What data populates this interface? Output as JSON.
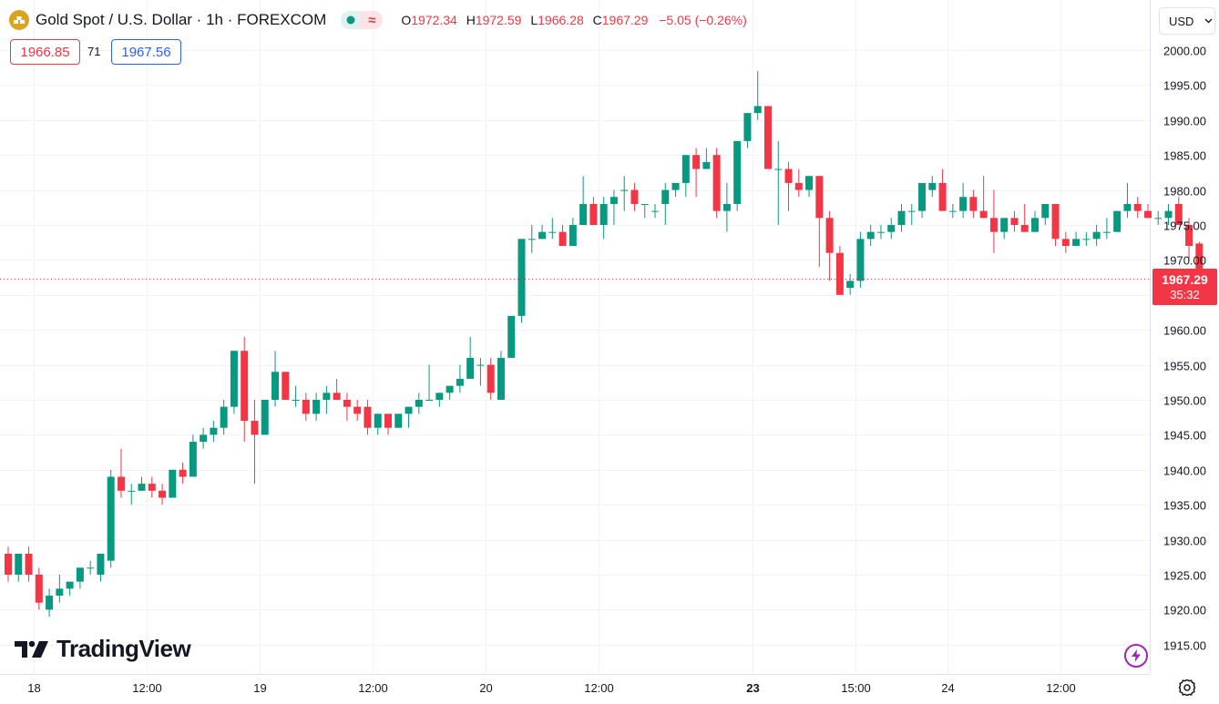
{
  "header": {
    "symbol": "Gold Spot / U.S. Dollar · 1h · FOREXCOM",
    "ohlc": {
      "o_key": "O",
      "o": "1972.34",
      "h_key": "H",
      "h": "1972.59",
      "l_key": "L",
      "l": "1966.28",
      "c_key": "C",
      "c": "1967.29",
      "change": "−5.05 (−0.26%)"
    },
    "bid": "1966.85",
    "spread": "71",
    "ask": "1967.56",
    "currency": "USD"
  },
  "last_price": {
    "price": "1967.29",
    "countdown": "35:32"
  },
  "logo": {
    "wordmark": "TradingView"
  },
  "colors": {
    "up": "#089981",
    "down": "#f23645",
    "grid": "#f0f3fa",
    "text": "#131722",
    "accent": "#2962ff"
  },
  "icons": {
    "symbol": "gold-coin-icon",
    "status": "market-status-icon",
    "delay": "approx-icon",
    "currency": "chevron-down-icon",
    "lightning": "lightning-icon",
    "settings": "gear-icon"
  },
  "chart_data": {
    "type": "candlestick",
    "y_range": [
      1912,
      2003
    ],
    "y_ticks": [
      2000,
      1995,
      1990,
      1985,
      1980,
      1975,
      1970,
      1965,
      1960,
      1955,
      1950,
      1945,
      1940,
      1935,
      1930,
      1925,
      1920,
      1915
    ],
    "x_ticks": [
      {
        "label": "18",
        "bar": 2.5,
        "bold": false
      },
      {
        "label": "12:00",
        "bar": 13.5,
        "bold": false
      },
      {
        "label": "19",
        "bar": 24.5,
        "bold": false
      },
      {
        "label": "12:00",
        "bar": 35.5,
        "bold": false
      },
      {
        "label": "20",
        "bar": 46.5,
        "bold": false
      },
      {
        "label": "12:00",
        "bar": 57.5,
        "bold": false
      },
      {
        "label": "23",
        "bar": 72.5,
        "bold": true
      },
      {
        "label": "15:00",
        "bar": 82.5,
        "bold": false
      },
      {
        "label": "24",
        "bar": 91.5,
        "bold": false
      },
      {
        "label": "12:00",
        "bar": 102.5,
        "bold": false
      }
    ],
    "last": 1967.29,
    "candles": [
      [
        1928,
        1929,
        1924,
        1925
      ],
      [
        1925,
        1928,
        1924,
        1928
      ],
      [
        1928,
        1929,
        1924,
        1925
      ],
      [
        1925,
        1926,
        1920,
        1921
      ],
      [
        1920,
        1923,
        1919,
        1922
      ],
      [
        1922,
        1925,
        1921,
        1923
      ],
      [
        1923,
        1924,
        1922,
        1924
      ],
      [
        1924,
        1926,
        1923,
        1926
      ],
      [
        1926,
        1927,
        1925,
        1926
      ],
      [
        1925,
        1928,
        1924,
        1928
      ],
      [
        1927,
        1940,
        1926,
        1939
      ],
      [
        1939,
        1943,
        1936,
        1937
      ],
      [
        1937,
        1938,
        1935,
        1937
      ],
      [
        1937,
        1939,
        1937,
        1938
      ],
      [
        1938,
        1939,
        1936,
        1937
      ],
      [
        1937,
        1938,
        1935,
        1936
      ],
      [
        1936,
        1940,
        1936,
        1940
      ],
      [
        1940,
        1941,
        1938,
        1939
      ],
      [
        1939,
        1945,
        1939,
        1944
      ],
      [
        1944,
        1946,
        1943,
        1945
      ],
      [
        1945,
        1947,
        1944,
        1946
      ],
      [
        1946,
        1950,
        1945,
        1949
      ],
      [
        1949,
        1957,
        1948,
        1957
      ],
      [
        1957,
        1959,
        1944,
        1947
      ],
      [
        1947,
        1950,
        1938,
        1945
      ],
      [
        1945,
        1950,
        1945,
        1950
      ],
      [
        1950,
        1957,
        1949,
        1954
      ],
      [
        1954,
        1954,
        1950,
        1950
      ],
      [
        1950,
        1952,
        1949,
        1950
      ],
      [
        1950,
        1951,
        1947,
        1948
      ],
      [
        1948,
        1951,
        1947,
        1950
      ],
      [
        1950,
        1952,
        1948,
        1951
      ],
      [
        1951,
        1953,
        1950,
        1950
      ],
      [
        1950,
        1951,
        1947,
        1949
      ],
      [
        1949,
        1950,
        1947,
        1948
      ],
      [
        1949,
        1950,
        1945,
        1946
      ],
      [
        1946,
        1948,
        1945,
        1948
      ],
      [
        1948,
        1948,
        1945,
        1946
      ],
      [
        1946,
        1948,
        1946,
        1948
      ],
      [
        1948,
        1949,
        1946,
        1949
      ],
      [
        1949,
        1951,
        1948,
        1950
      ],
      [
        1950,
        1955,
        1950,
        1950
      ],
      [
        1950,
        1951,
        1949,
        1951
      ],
      [
        1951,
        1952,
        1950,
        1952
      ],
      [
        1952,
        1955,
        1951,
        1953
      ],
      [
        1953,
        1959,
        1953,
        1956
      ],
      [
        1955,
        1956,
        1952,
        1955
      ],
      [
        1955,
        1956,
        1950,
        1951
      ],
      [
        1950,
        1957,
        1950,
        1956
      ],
      [
        1956,
        1962,
        1956,
        1962
      ],
      [
        1962,
        1973,
        1961,
        1973
      ],
      [
        1973,
        1975,
        1971,
        1973
      ],
      [
        1973,
        1975,
        1973,
        1974
      ],
      [
        1974,
        1976,
        1973,
        1974
      ],
      [
        1974,
        1975,
        1972,
        1972
      ],
      [
        1972,
        1976,
        1972,
        1975
      ],
      [
        1975,
        1982,
        1975,
        1978
      ],
      [
        1978,
        1979,
        1975,
        1975
      ],
      [
        1975,
        1979,
        1973,
        1978
      ],
      [
        1978,
        1980,
        1975,
        1979
      ],
      [
        1980,
        1982,
        1977,
        1980
      ],
      [
        1980,
        1981,
        1977,
        1978
      ],
      [
        1978,
        1978,
        1976,
        1978
      ],
      [
        1977,
        1978,
        1976,
        1977
      ],
      [
        1978,
        1981,
        1975,
        1980
      ],
      [
        1980,
        1981,
        1979,
        1981
      ],
      [
        1981,
        1985,
        1979,
        1985
      ],
      [
        1985,
        1986,
        1979,
        1983
      ],
      [
        1983,
        1986,
        1983,
        1984
      ],
      [
        1985,
        1986,
        1976,
        1977
      ],
      [
        1977,
        1981,
        1974,
        1978
      ],
      [
        1978,
        1987,
        1977,
        1987
      ],
      [
        1987,
        1991,
        1986,
        1991
      ],
      [
        1991,
        1997,
        1990,
        1992
      ],
      [
        1992,
        1992,
        1983,
        1983
      ],
      [
        1983,
        1987,
        1975,
        1983
      ],
      [
        1983,
        1984,
        1977,
        1981
      ],
      [
        1981,
        1983,
        1979,
        1980
      ],
      [
        1980,
        1982,
        1979,
        1982
      ],
      [
        1982,
        1982,
        1969,
        1976
      ],
      [
        1976,
        1977,
        1967,
        1971
      ],
      [
        1971,
        1972,
        1965,
        1965
      ],
      [
        1966,
        1968,
        1965,
        1967
      ],
      [
        1967,
        1974,
        1966,
        1973
      ],
      [
        1973,
        1975,
        1972,
        1974
      ],
      [
        1974,
        1975,
        1973,
        1974
      ],
      [
        1974,
        1976,
        1973,
        1975
      ],
      [
        1975,
        1978,
        1974,
        1977
      ],
      [
        1977,
        1978,
        1975,
        1977
      ],
      [
        1977,
        1981,
        1976,
        1981
      ],
      [
        1980,
        1982,
        1979,
        1981
      ],
      [
        1981,
        1983,
        1977,
        1977
      ],
      [
        1977,
        1978,
        1976,
        1977
      ],
      [
        1977,
        1981,
        1976,
        1979
      ],
      [
        1979,
        1980,
        1976,
        1977
      ],
      [
        1977,
        1982,
        1976,
        1976
      ],
      [
        1976,
        1980,
        1971,
        1974
      ],
      [
        1974,
        1976,
        1973,
        1976
      ],
      [
        1976,
        1977,
        1974,
        1975
      ],
      [
        1975,
        1978,
        1974,
        1974
      ],
      [
        1974,
        1977,
        1974,
        1976
      ],
      [
        1976,
        1978,
        1975,
        1978
      ],
      [
        1978,
        1978,
        1972,
        1973
      ],
      [
        1973,
        1974,
        1971,
        1972
      ],
      [
        1972,
        1974,
        1972,
        1973
      ],
      [
        1973,
        1974,
        1972,
        1973
      ],
      [
        1973,
        1975,
        1972,
        1974
      ],
      [
        1974,
        1976,
        1973,
        1974
      ],
      [
        1974,
        1977,
        1974,
        1977
      ],
      [
        1977,
        1981,
        1976,
        1978
      ],
      [
        1978,
        1979,
        1976,
        1977
      ],
      [
        1977,
        1978,
        1976,
        1976
      ],
      [
        1976,
        1977,
        1975,
        1976
      ],
      [
        1976,
        1978,
        1975,
        1977
      ],
      [
        1978,
        1979,
        1975,
        1975
      ],
      [
        1975,
        1976,
        1970,
        1972
      ],
      [
        1972.34,
        1972.59,
        1966.28,
        1967.29
      ]
    ]
  }
}
